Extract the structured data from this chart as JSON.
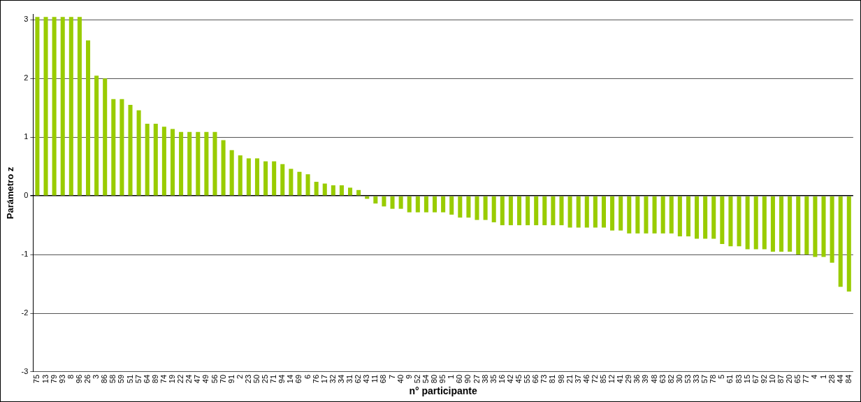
{
  "chart_data": {
    "type": "bar",
    "xlabel": "n° participante",
    "ylabel": "Parámetro z",
    "categories": [
      "75",
      "13",
      "79",
      "93",
      "8",
      "96",
      "26",
      "3",
      "86",
      "58",
      "59",
      "51",
      "57",
      "64",
      "89",
      "74",
      "19",
      "22",
      "24",
      "47",
      "49",
      "56",
      "70",
      "91",
      "2",
      "23",
      "50",
      "25",
      "71",
      "94",
      "14",
      "69",
      "6",
      "76",
      "17",
      "32",
      "34",
      "31",
      "62",
      "43",
      "11",
      "68",
      "7",
      "40",
      "9",
      "52",
      "54",
      "80",
      "95",
      "1",
      "60",
      "90",
      "27",
      "38",
      "35",
      "16",
      "42",
      "45",
      "55",
      "66",
      "73",
      "81",
      "98",
      "21",
      "37",
      "46",
      "72",
      "85",
      "12",
      "41",
      "29",
      "36",
      "39",
      "48",
      "63",
      "82",
      "30",
      "53",
      "33",
      "57",
      "78",
      "5",
      "61",
      "83",
      "15",
      "67",
      "92",
      "10",
      "87",
      "20",
      "65",
      "77",
      "4",
      "1",
      "28",
      "44",
      "84"
    ],
    "values": [
      3.05,
      3.05,
      3.05,
      3.05,
      3.05,
      3.05,
      2.65,
      2.05,
      2.0,
      1.65,
      1.65,
      1.55,
      1.46,
      1.23,
      1.23,
      1.18,
      1.14,
      1.09,
      1.09,
      1.09,
      1.09,
      1.09,
      0.95,
      0.78,
      0.69,
      0.64,
      0.64,
      0.59,
      0.59,
      0.54,
      0.46,
      0.41,
      0.37,
      0.24,
      0.21,
      0.18,
      0.18,
      0.14,
      0.1,
      -0.05,
      -0.13,
      -0.18,
      -0.22,
      -0.22,
      -0.28,
      -0.28,
      -0.28,
      -0.28,
      -0.28,
      -0.32,
      -0.37,
      -0.37,
      -0.41,
      -0.41,
      -0.45,
      -0.5,
      -0.5,
      -0.5,
      -0.5,
      -0.5,
      -0.5,
      -0.5,
      -0.5,
      -0.54,
      -0.54,
      -0.54,
      -0.54,
      -0.54,
      -0.59,
      -0.59,
      -0.64,
      -0.64,
      -0.64,
      -0.64,
      -0.64,
      -0.64,
      -0.69,
      -0.69,
      -0.73,
      -0.73,
      -0.73,
      -0.82,
      -0.86,
      -0.86,
      -0.91,
      -0.91,
      -0.91,
      -0.95,
      -0.95,
      -0.95,
      -1.0,
      -1.0,
      -1.04,
      -1.04,
      -1.14,
      -1.55,
      -1.63
    ],
    "color": "#99cc00",
    "ylim": [
      -3,
      3.1
    ],
    "yticks": [
      -3,
      -2,
      -1,
      0,
      1,
      2,
      3
    ],
    "grid": "y",
    "legend": false
  }
}
